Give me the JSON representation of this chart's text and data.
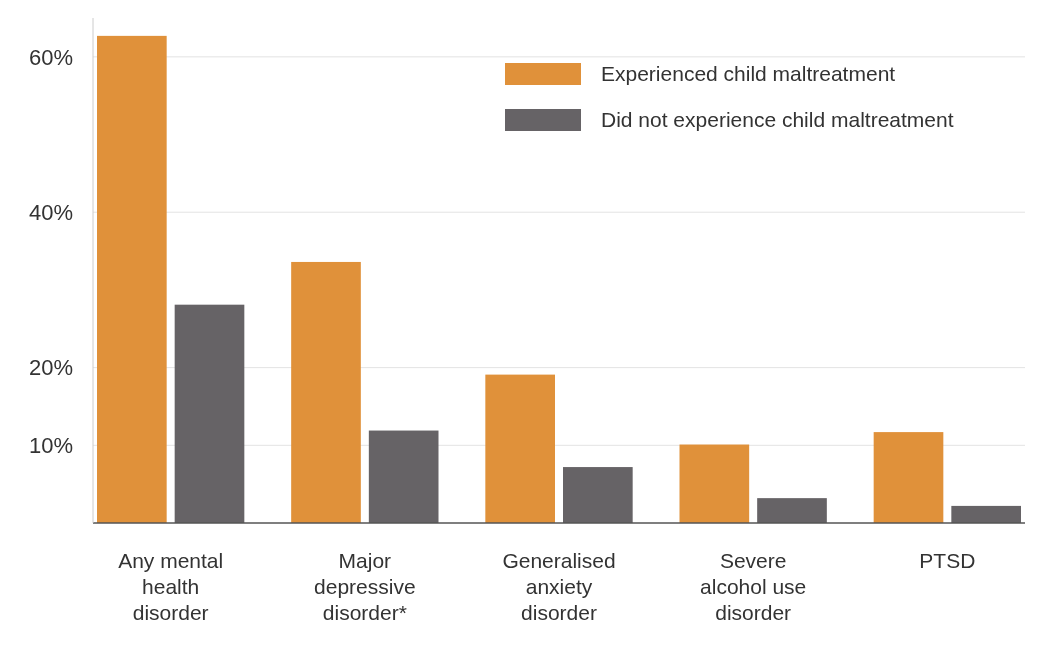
{
  "chart_data": {
    "type": "bar",
    "categories": [
      "Any mental health disorder",
      "Major depressive disorder*",
      "Generalised anxiety disorder",
      "Severe alcohol use disorder",
      "PTSD"
    ],
    "series": [
      {
        "name": "Experienced child maltreatment",
        "color": "#e0913a",
        "values": [
          62.7,
          33.6,
          19.1,
          10.1,
          11.7
        ]
      },
      {
        "name": "Did not experience child maltreatment",
        "color": "#666366",
        "values": [
          28.1,
          11.9,
          7.2,
          3.2,
          2.2
        ]
      }
    ],
    "ylim": [
      0,
      65
    ],
    "yticks": [
      {
        "value": 10,
        "label": "10%"
      },
      {
        "value": 20,
        "label": "20%"
      },
      {
        "value": 40,
        "label": "40%"
      },
      {
        "value": 60,
        "label": "60%"
      }
    ],
    "grid": "y",
    "legend": "top right"
  }
}
